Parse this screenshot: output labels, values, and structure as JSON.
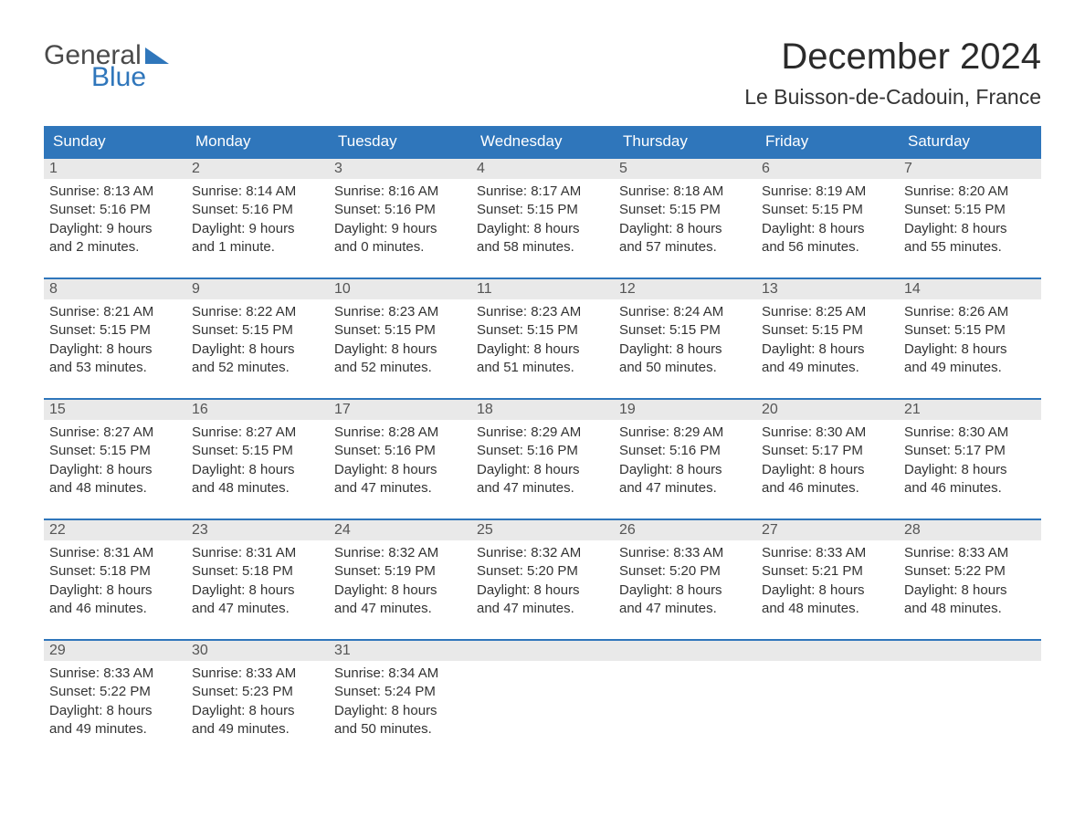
{
  "logo": {
    "word1": "General",
    "word2": "Blue"
  },
  "title": "December 2024",
  "location": "Le Buisson-de-Cadouin, France",
  "colors": {
    "header_bg": "#2f76bb",
    "header_fg": "#ffffff",
    "daynum_bg": "#e9e9e9",
    "text": "#333333",
    "page_bg": "#ffffff"
  },
  "typography": {
    "title_fontsize": 40,
    "location_fontsize": 23,
    "dow_fontsize": 17,
    "cell_fontsize": 15
  },
  "days_of_week": [
    "Sunday",
    "Monday",
    "Tuesday",
    "Wednesday",
    "Thursday",
    "Friday",
    "Saturday"
  ],
  "weeks": [
    [
      {
        "n": "1",
        "sunrise": "8:13 AM",
        "sunset": "5:16 PM",
        "dl1": "9 hours",
        "dl2": "and 2 minutes."
      },
      {
        "n": "2",
        "sunrise": "8:14 AM",
        "sunset": "5:16 PM",
        "dl1": "9 hours",
        "dl2": "and 1 minute."
      },
      {
        "n": "3",
        "sunrise": "8:16 AM",
        "sunset": "5:16 PM",
        "dl1": "9 hours",
        "dl2": "and 0 minutes."
      },
      {
        "n": "4",
        "sunrise": "8:17 AM",
        "sunset": "5:15 PM",
        "dl1": "8 hours",
        "dl2": "and 58 minutes."
      },
      {
        "n": "5",
        "sunrise": "8:18 AM",
        "sunset": "5:15 PM",
        "dl1": "8 hours",
        "dl2": "and 57 minutes."
      },
      {
        "n": "6",
        "sunrise": "8:19 AM",
        "sunset": "5:15 PM",
        "dl1": "8 hours",
        "dl2": "and 56 minutes."
      },
      {
        "n": "7",
        "sunrise": "8:20 AM",
        "sunset": "5:15 PM",
        "dl1": "8 hours",
        "dl2": "and 55 minutes."
      }
    ],
    [
      {
        "n": "8",
        "sunrise": "8:21 AM",
        "sunset": "5:15 PM",
        "dl1": "8 hours",
        "dl2": "and 53 minutes."
      },
      {
        "n": "9",
        "sunrise": "8:22 AM",
        "sunset": "5:15 PM",
        "dl1": "8 hours",
        "dl2": "and 52 minutes."
      },
      {
        "n": "10",
        "sunrise": "8:23 AM",
        "sunset": "5:15 PM",
        "dl1": "8 hours",
        "dl2": "and 52 minutes."
      },
      {
        "n": "11",
        "sunrise": "8:23 AM",
        "sunset": "5:15 PM",
        "dl1": "8 hours",
        "dl2": "and 51 minutes."
      },
      {
        "n": "12",
        "sunrise": "8:24 AM",
        "sunset": "5:15 PM",
        "dl1": "8 hours",
        "dl2": "and 50 minutes."
      },
      {
        "n": "13",
        "sunrise": "8:25 AM",
        "sunset": "5:15 PM",
        "dl1": "8 hours",
        "dl2": "and 49 minutes."
      },
      {
        "n": "14",
        "sunrise": "8:26 AM",
        "sunset": "5:15 PM",
        "dl1": "8 hours",
        "dl2": "and 49 minutes."
      }
    ],
    [
      {
        "n": "15",
        "sunrise": "8:27 AM",
        "sunset": "5:15 PM",
        "dl1": "8 hours",
        "dl2": "and 48 minutes."
      },
      {
        "n": "16",
        "sunrise": "8:27 AM",
        "sunset": "5:15 PM",
        "dl1": "8 hours",
        "dl2": "and 48 minutes."
      },
      {
        "n": "17",
        "sunrise": "8:28 AM",
        "sunset": "5:16 PM",
        "dl1": "8 hours",
        "dl2": "and 47 minutes."
      },
      {
        "n": "18",
        "sunrise": "8:29 AM",
        "sunset": "5:16 PM",
        "dl1": "8 hours",
        "dl2": "and 47 minutes."
      },
      {
        "n": "19",
        "sunrise": "8:29 AM",
        "sunset": "5:16 PM",
        "dl1": "8 hours",
        "dl2": "and 47 minutes."
      },
      {
        "n": "20",
        "sunrise": "8:30 AM",
        "sunset": "5:17 PM",
        "dl1": "8 hours",
        "dl2": "and 46 minutes."
      },
      {
        "n": "21",
        "sunrise": "8:30 AM",
        "sunset": "5:17 PM",
        "dl1": "8 hours",
        "dl2": "and 46 minutes."
      }
    ],
    [
      {
        "n": "22",
        "sunrise": "8:31 AM",
        "sunset": "5:18 PM",
        "dl1": "8 hours",
        "dl2": "and 46 minutes."
      },
      {
        "n": "23",
        "sunrise": "8:31 AM",
        "sunset": "5:18 PM",
        "dl1": "8 hours",
        "dl2": "and 47 minutes."
      },
      {
        "n": "24",
        "sunrise": "8:32 AM",
        "sunset": "5:19 PM",
        "dl1": "8 hours",
        "dl2": "and 47 minutes."
      },
      {
        "n": "25",
        "sunrise": "8:32 AM",
        "sunset": "5:20 PM",
        "dl1": "8 hours",
        "dl2": "and 47 minutes."
      },
      {
        "n": "26",
        "sunrise": "8:33 AM",
        "sunset": "5:20 PM",
        "dl1": "8 hours",
        "dl2": "and 47 minutes."
      },
      {
        "n": "27",
        "sunrise": "8:33 AM",
        "sunset": "5:21 PM",
        "dl1": "8 hours",
        "dl2": "and 48 minutes."
      },
      {
        "n": "28",
        "sunrise": "8:33 AM",
        "sunset": "5:22 PM",
        "dl1": "8 hours",
        "dl2": "and 48 minutes."
      }
    ],
    [
      {
        "n": "29",
        "sunrise": "8:33 AM",
        "sunset": "5:22 PM",
        "dl1": "8 hours",
        "dl2": "and 49 minutes."
      },
      {
        "n": "30",
        "sunrise": "8:33 AM",
        "sunset": "5:23 PM",
        "dl1": "8 hours",
        "dl2": "and 49 minutes."
      },
      {
        "n": "31",
        "sunrise": "8:34 AM",
        "sunset": "5:24 PM",
        "dl1": "8 hours",
        "dl2": "and 50 minutes."
      },
      null,
      null,
      null,
      null
    ]
  ],
  "labels": {
    "sunrise_prefix": "Sunrise: ",
    "sunset_prefix": "Sunset: ",
    "daylight_prefix": "Daylight: "
  }
}
